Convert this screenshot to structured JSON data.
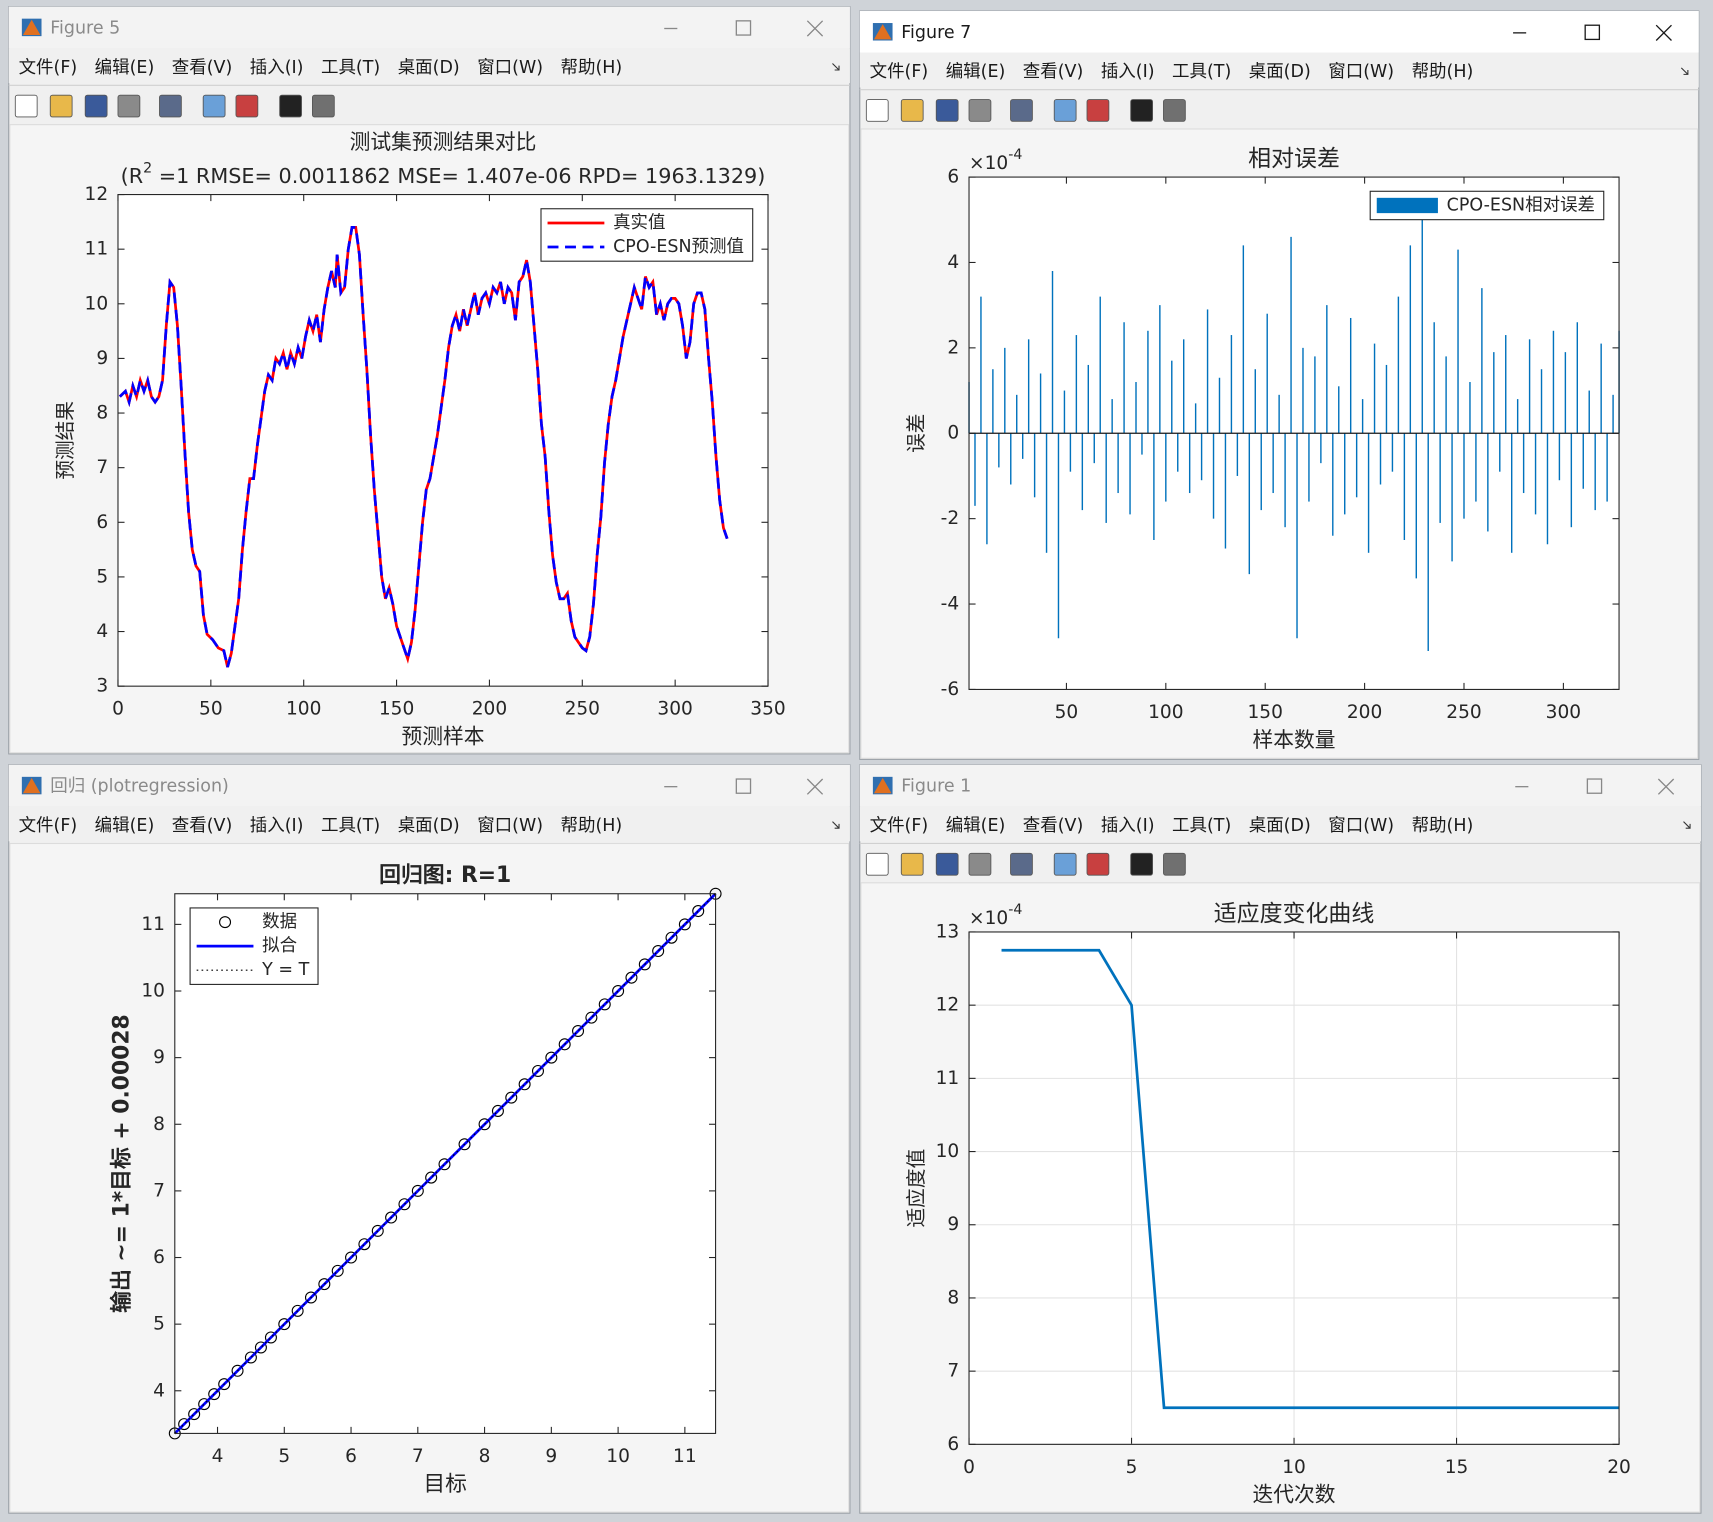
{
  "menu": [
    "文件(F)",
    "编辑(E)",
    "查看(V)",
    "插入(I)",
    "工具(T)",
    "桌面(D)",
    "窗口(W)",
    "帮助(H)"
  ],
  "windows": [
    {
      "title": "Figure 5",
      "chart_data": {
        "type": "line",
        "title": "测试集预测结果对比",
        "subtitle_parts": [
          "(R",
          "2",
          " =1 RMSE= 0.0011862 MSE= 1.407e-06 RPD= 1963.1329)"
        ],
        "xlabel": "预测样本",
        "ylabel": "预测结果",
        "xlim": [
          0,
          350
        ],
        "xticks": [
          0,
          50,
          100,
          150,
          200,
          250,
          300,
          350
        ],
        "ylim": [
          3,
          12
        ],
        "yticks": [
          3,
          4,
          5,
          6,
          7,
          8,
          9,
          10,
          11,
          12
        ],
        "grid": false,
        "legend": "northeast",
        "x": [
          1,
          4,
          6,
          8,
          10,
          12,
          14,
          16,
          18,
          20,
          22,
          24,
          26,
          28,
          30,
          32,
          34,
          36,
          38,
          40,
          42,
          44,
          46,
          48,
          51,
          54,
          57,
          59,
          61,
          63,
          65,
          67,
          69,
          71,
          73,
          75,
          77,
          79,
          81,
          83,
          85,
          87,
          89,
          91,
          93,
          95,
          97,
          99,
          101,
          103,
          105,
          107,
          109,
          111,
          113,
          115,
          117,
          118,
          120,
          122,
          124,
          126,
          128,
          130,
          132,
          134,
          136,
          138,
          140,
          142,
          144,
          146,
          148,
          150,
          152,
          154,
          156,
          158,
          160,
          162,
          164,
          166,
          168,
          170,
          172,
          174,
          176,
          178,
          180,
          182,
          184,
          186,
          188,
          190,
          192,
          194,
          196,
          198,
          200,
          202,
          204,
          206,
          208,
          210,
          212,
          214,
          216,
          218,
          220,
          222,
          224,
          226,
          228,
          230,
          232,
          234,
          236,
          238,
          240,
          242,
          244,
          246,
          248,
          250,
          252,
          254,
          256,
          258,
          260,
          262,
          264,
          266,
          268,
          270,
          272,
          274,
          276,
          278,
          280,
          282,
          284,
          286,
          288,
          290,
          292,
          294,
          296,
          298,
          300,
          302,
          304,
          306,
          308,
          310,
          312,
          314,
          316,
          318,
          320,
          322,
          324,
          326,
          328
        ],
        "series": [
          {
            "name": "真实值",
            "color": "#ff0000",
            "line_style": "-",
            "values": [
              8.3,
              8.4,
              8.2,
              8.5,
              8.3,
              8.6,
              8.4,
              8.6,
              8.3,
              8.2,
              8.3,
              8.6,
              9.6,
              10.4,
              10.3,
              9.6,
              8.5,
              7.3,
              6.2,
              5.5,
              5.2,
              5.1,
              4.3,
              3.95,
              3.85,
              3.7,
              3.65,
              3.35,
              3.6,
              4.1,
              4.6,
              5.5,
              6.2,
              6.8,
              6.8,
              7.4,
              7.9,
              8.4,
              8.7,
              8.6,
              9.0,
              8.9,
              9.1,
              8.8,
              9.1,
              8.9,
              9.2,
              9.0,
              9.4,
              9.7,
              9.5,
              9.8,
              9.3,
              9.9,
              10.3,
              10.6,
              10.3,
              10.9,
              10.2,
              10.3,
              11.0,
              11.4,
              11.4,
              10.9,
              9.8,
              8.8,
              7.6,
              6.6,
              5.8,
              5.0,
              4.6,
              4.8,
              4.5,
              4.1,
              3.9,
              3.7,
              3.5,
              3.8,
              4.4,
              5.2,
              6.0,
              6.6,
              6.8,
              7.2,
              7.6,
              8.1,
              8.6,
              9.2,
              9.6,
              9.8,
              9.5,
              9.9,
              9.6,
              9.9,
              10.2,
              9.8,
              10.1,
              10.2,
              10.0,
              10.3,
              10.2,
              10.4,
              10.0,
              10.3,
              10.2,
              9.7,
              10.4,
              10.5,
              10.8,
              10.4,
              9.6,
              8.8,
              7.8,
              7.2,
              6.2,
              5.4,
              4.9,
              4.6,
              4.6,
              4.7,
              4.2,
              3.9,
              3.8,
              3.7,
              3.65,
              3.9,
              4.5,
              5.4,
              6.1,
              7.1,
              7.8,
              8.3,
              8.6,
              9.0,
              9.4,
              9.7,
              10.0,
              10.3,
              10.1,
              9.9,
              10.5,
              10.3,
              10.4,
              9.8,
              10.0,
              9.7,
              10.0,
              10.1,
              10.1,
              10.0,
              9.6,
              9.0,
              9.3,
              10.0,
              10.2,
              10.2,
              9.9,
              9.0,
              8.2,
              7.2,
              6.4,
              5.9,
              5.7
            ]
          },
          {
            "name": "CPO-ESN预测值",
            "color": "#0000ff",
            "line_style": "--",
            "values": [
              8.3,
              8.4,
              8.2,
              8.5,
              8.3,
              8.6,
              8.4,
              8.6,
              8.3,
              8.2,
              8.3,
              8.6,
              9.6,
              10.4,
              10.3,
              9.6,
              8.5,
              7.3,
              6.2,
              5.5,
              5.2,
              5.1,
              4.3,
              3.95,
              3.85,
              3.7,
              3.65,
              3.35,
              3.6,
              4.1,
              4.6,
              5.5,
              6.2,
              6.8,
              6.8,
              7.4,
              7.9,
              8.4,
              8.7,
              8.6,
              9.0,
              8.9,
              9.1,
              8.8,
              9.1,
              8.9,
              9.2,
              9.0,
              9.4,
              9.7,
              9.5,
              9.8,
              9.3,
              9.9,
              10.3,
              10.6,
              10.3,
              10.9,
              10.2,
              10.3,
              11.0,
              11.4,
              11.4,
              10.9,
              9.8,
              8.8,
              7.6,
              6.6,
              5.8,
              5.0,
              4.6,
              4.8,
              4.5,
              4.1,
              3.9,
              3.7,
              3.5,
              3.8,
              4.4,
              5.2,
              6.0,
              6.6,
              6.8,
              7.2,
              7.6,
              8.1,
              8.6,
              9.2,
              9.6,
              9.8,
              9.5,
              9.9,
              9.6,
              9.9,
              10.2,
              9.8,
              10.1,
              10.2,
              10.0,
              10.3,
              10.2,
              10.4,
              10.0,
              10.3,
              10.2,
              9.7,
              10.4,
              10.5,
              10.8,
              10.4,
              9.6,
              8.8,
              7.8,
              7.2,
              6.2,
              5.4,
              4.9,
              4.6,
              4.6,
              4.7,
              4.2,
              3.9,
              3.8,
              3.7,
              3.65,
              3.9,
              4.5,
              5.4,
              6.1,
              7.1,
              7.8,
              8.3,
              8.6,
              9.0,
              9.4,
              9.7,
              10.0,
              10.3,
              10.1,
              9.9,
              10.5,
              10.3,
              10.4,
              9.8,
              10.0,
              9.7,
              10.0,
              10.1,
              10.1,
              10.0,
              9.6,
              9.0,
              9.3,
              10.0,
              10.2,
              10.2,
              9.9,
              9.0,
              8.2,
              7.2,
              6.4,
              5.9,
              5.7
            ]
          }
        ]
      }
    },
    {
      "title": "Figure 7",
      "chart_data": {
        "type": "bar",
        "title": "相对误差",
        "xlabel": "样本数量",
        "ylabel": "误差",
        "y_multiplier": "×10",
        "y_exponent": "-4",
        "xlim": [
          1,
          328
        ],
        "xticks": [
          50,
          100,
          150,
          200,
          250,
          300
        ],
        "ylim": [
          -6,
          6
        ],
        "yticks": [
          -6,
          -4,
          -2,
          0,
          2,
          4,
          6
        ],
        "grid": false,
        "legend": "northeast",
        "x": [
          1,
          4,
          7,
          10,
          13,
          16,
          19,
          22,
          25,
          28,
          31,
          34,
          37,
          40,
          43,
          46,
          49,
          52,
          55,
          58,
          61,
          64,
          67,
          70,
          73,
          76,
          79,
          82,
          85,
          88,
          91,
          94,
          97,
          100,
          103,
          106,
          109,
          112,
          115,
          118,
          121,
          124,
          127,
          130,
          133,
          136,
          139,
          142,
          145,
          148,
          151,
          154,
          157,
          160,
          163,
          166,
          169,
          172,
          175,
          178,
          181,
          184,
          187,
          190,
          193,
          196,
          199,
          202,
          205,
          208,
          211,
          214,
          217,
          220,
          223,
          226,
          229,
          232,
          235,
          238,
          241,
          244,
          247,
          250,
          253,
          256,
          259,
          262,
          265,
          268,
          271,
          274,
          277,
          280,
          283,
          286,
          289,
          292,
          295,
          298,
          301,
          304,
          307,
          310,
          313,
          316,
          319,
          322,
          325,
          328
        ],
        "series": [
          {
            "name": "CPO-ESN相对误差",
            "color": "#0072bd",
            "values": [
              1.2,
              -1.7,
              3.2,
              -2.6,
              1.5,
              -0.8,
              2.0,
              -1.2,
              0.9,
              -0.6,
              2.2,
              -1.5,
              1.4,
              -2.8,
              3.8,
              -4.8,
              1.0,
              -0.9,
              2.3,
              -1.8,
              1.6,
              -0.7,
              3.2,
              -2.1,
              0.8,
              -1.4,
              2.6,
              -1.9,
              1.2,
              -0.5,
              2.4,
              -2.5,
              3.0,
              -1.6,
              1.7,
              -0.9,
              2.2,
              -1.4,
              0.7,
              -1.1,
              2.9,
              -2.0,
              1.3,
              -2.7,
              2.3,
              -1.0,
              4.4,
              -3.3,
              1.5,
              -1.8,
              2.8,
              -1.4,
              0.9,
              -2.2,
              4.6,
              -4.8,
              2.0,
              -1.6,
              1.8,
              -0.7,
              3.0,
              -2.4,
              1.1,
              -1.9,
              2.7,
              -1.5,
              0.8,
              -2.8,
              2.1,
              -1.2,
              1.6,
              -0.9,
              3.2,
              -2.5,
              4.4,
              -3.4,
              5.0,
              -5.1,
              2.6,
              -2.1,
              1.8,
              -3.0,
              4.3,
              -2.0,
              1.2,
              -1.6,
              3.4,
              -2.3,
              1.9,
              -0.9,
              2.3,
              -2.8,
              0.8,
              -1.4,
              2.2,
              -1.9,
              1.5,
              -2.6,
              2.4,
              -1.1,
              1.9,
              -2.2,
              2.6,
              -1.3,
              1.0,
              -1.8,
              2.1,
              -1.6,
              0.9,
              2.4
            ]
          }
        ]
      }
    },
    {
      "title": "回归 (plotregression)",
      "chart_data": {
        "type": "scatter",
        "title": "回归图: R=1",
        "xlabel": "目标",
        "ylabel": "输出 ~= 1*目标 + 0.00028",
        "xlim": [
          3.36,
          11.46
        ],
        "xticks": [
          4,
          5,
          6,
          7,
          8,
          9,
          10,
          11
        ],
        "ylim": [
          3.36,
          11.46
        ],
        "yticks": [
          4,
          5,
          6,
          7,
          8,
          9,
          10,
          11
        ],
        "grid": false,
        "legend": "northwest",
        "series": [
          {
            "name": "数据",
            "color": "#000000",
            "marker": "o",
            "x": [
              3.36,
              3.5,
              3.65,
              3.8,
              3.95,
              4.1,
              4.3,
              4.5,
              4.65,
              4.8,
              5.0,
              5.2,
              5.4,
              5.6,
              5.8,
              6.0,
              6.2,
              6.4,
              6.6,
              6.8,
              7.0,
              7.2,
              7.4,
              7.7,
              8.0,
              8.2,
              8.4,
              8.6,
              8.8,
              9.0,
              9.2,
              9.4,
              9.6,
              9.8,
              10.0,
              10.2,
              10.4,
              10.6,
              10.8,
              11.0,
              11.2,
              11.46
            ],
            "y": [
              3.36,
              3.5,
              3.65,
              3.8,
              3.95,
              4.1,
              4.3,
              4.5,
              4.65,
              4.8,
              5.0,
              5.2,
              5.4,
              5.6,
              5.8,
              6.0,
              6.2,
              6.4,
              6.6,
              6.8,
              7.0,
              7.2,
              7.4,
              7.7,
              8.0,
              8.2,
              8.4,
              8.6,
              8.8,
              9.0,
              9.2,
              9.4,
              9.6,
              9.8,
              10.0,
              10.2,
              10.4,
              10.6,
              10.8,
              11.0,
              11.2,
              11.46
            ]
          },
          {
            "name": "拟合",
            "color": "#0000ff",
            "line_style": "-",
            "x": [
              3.36,
              11.46
            ],
            "y": [
              3.36,
              11.46
            ]
          },
          {
            "name": "Y = T",
            "color": "#000000",
            "line_style": ":",
            "x": [
              3.36,
              11.46
            ],
            "y": [
              3.36,
              11.46
            ]
          }
        ]
      }
    },
    {
      "title": "Figure 1",
      "chart_data": {
        "type": "line",
        "title": "适应度变化曲线",
        "xlabel": "迭代次数",
        "ylabel": "适应度值",
        "y_multiplier": "×10",
        "y_exponent": "-4",
        "xlim": [
          0,
          20
        ],
        "xticks": [
          0,
          5,
          10,
          15,
          20
        ],
        "ylim": [
          6,
          13
        ],
        "yticks": [
          6,
          7,
          8,
          9,
          10,
          11,
          12,
          13
        ],
        "grid": true,
        "x": [
          1,
          2,
          3,
          4,
          5,
          6,
          7,
          8,
          9,
          10,
          11,
          12,
          13,
          14,
          15,
          16,
          17,
          18,
          19,
          20
        ],
        "series": [
          {
            "color": "#0072bd",
            "line_style": "-",
            "values": [
              12.75,
              12.75,
              12.75,
              12.75,
              12.0,
              6.5,
              6.5,
              6.5,
              6.5,
              6.5,
              6.5,
              6.5,
              6.5,
              6.5,
              6.5,
              6.5,
              6.5,
              6.5,
              6.5,
              6.5
            ]
          }
        ]
      }
    }
  ]
}
